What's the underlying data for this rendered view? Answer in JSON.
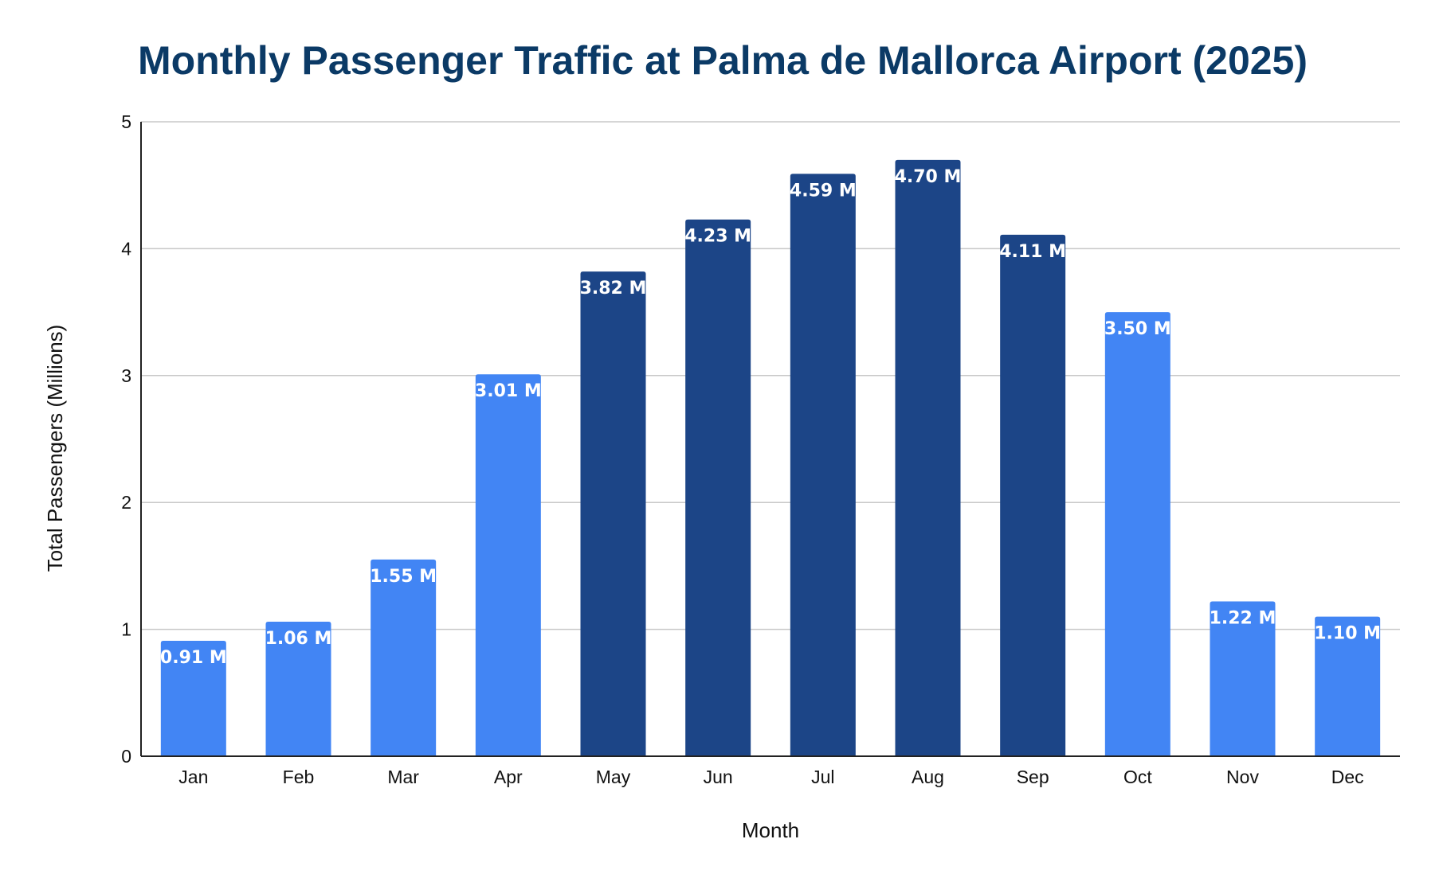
{
  "chart_data": {
    "type": "bar",
    "title": "Monthly Passenger Traffic at Palma de Mallorca Airport (2025)",
    "xlabel": "Month",
    "ylabel": "Total Passengers (Millions)",
    "ylim": [
      0,
      5
    ],
    "yticks": [
      "0",
      "1",
      "2",
      "3",
      "4",
      "5"
    ],
    "grid": true,
    "categories": [
      "Jan",
      "Feb",
      "Mar",
      "Apr",
      "May",
      "Jun",
      "Jul",
      "Aug",
      "Sep",
      "Oct",
      "Nov",
      "Dec"
    ],
    "values": [
      0.91,
      1.06,
      1.55,
      3.01,
      3.82,
      4.23,
      4.59,
      4.7,
      4.11,
      3.5,
      1.22,
      1.1
    ],
    "data_labels": [
      "0.91 M",
      "1.06 M",
      "1.55 M",
      "3.01 M",
      "3.82 M",
      "4.23 M",
      "4.59 M",
      "4.70 M",
      "4.11 M",
      "3.50 M",
      "1.22 M",
      "1.10 M"
    ],
    "bar_colors": [
      "#4285f4",
      "#4285f4",
      "#4285f4",
      "#4285f4",
      "#1c4587",
      "#1c4587",
      "#1c4587",
      "#1c4587",
      "#1c4587",
      "#4285f4",
      "#4285f4",
      "#4285f4"
    ]
  }
}
